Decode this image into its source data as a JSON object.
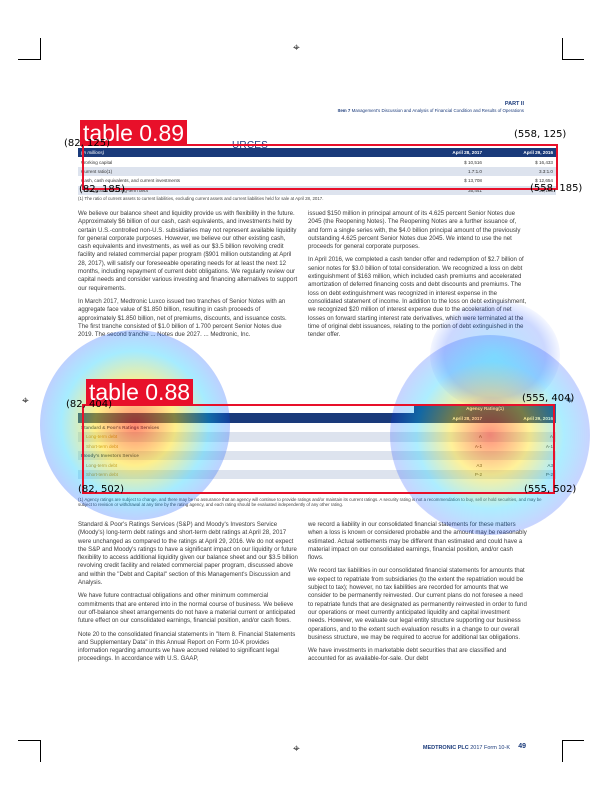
{
  "header": {
    "part": "PART II",
    "item_bold": "Item 7",
    "item_text": "Management's Discussion and Analysis of Financial Condition and Results of Operations"
  },
  "section_title": "URCES",
  "detections": [
    {
      "label": "table 0.89",
      "tl": "(82, 125)",
      "tr": "(558, 125)",
      "bl": "(82, 185)",
      "br": "(558, 185)"
    },
    {
      "label": "table 0.88",
      "tl": "(82, 404)",
      "tr": "(555, 404)",
      "bl": "(82, 502)",
      "br": "(555, 502)"
    }
  ],
  "table1": {
    "head": [
      "(in millions)",
      "April 28, 2017",
      "April 29, 2016"
    ],
    "rows": [
      [
        "Working capital",
        "$   10,516",
        "$   16,433"
      ],
      [
        "Current ratio(1)",
        "1.7:1.0",
        "3.3:1.0"
      ],
      [
        "Cash, cash equivalents, and current investments",
        "$   13,708",
        "$   12,654"
      ],
      [
        "... obligations and long-term debt",
        "35,441",
        "31,103"
      ]
    ],
    "footnote": "(1)   The ratio of current assets to current liabilities, excluding current assets and current liabilities held for sale at April 28, 2017."
  },
  "left_col_top": [
    "We believe our balance sheet and liquidity provide us with flexibility in the future. Approximately $6 billion of our cash, cash equivalents, and investments held by certain U.S.-controlled non-U.S. subsidiaries may not represent available liquidity for general corporate purposes. However, we believe our other existing cash, cash equivalents and investments, as well as our $3.5 billion revolving credit facility and related commercial paper program ($901 million outstanding at April 28, 2017), will satisfy our foreseeable operating needs for at least the next 12 months, including repayment of current debt obligations. We regularly review our capital needs and consider various investing and financing alternatives to support our requirements.",
    "In March 2017, Medtronic Luxco issued two tranches of Senior Notes with an aggregate face value of $1.850 billion, resulting in cash proceeds of approximately $1.850 billion, net of premiums, discounts, and issuance costs. The first tranche consisted of $1.0 billion of 1.700 percent Senior Notes due 2019. The second tranche ... Notes due 2027. ... Medtronic, Inc."
  ],
  "right_col_top": [
    "issued $150 million in principal amount of its 4.625 percent Senior Notes due 2045 (the Reopening Notes). The Reopening Notes are a further issuance of, and form a single series with, the $4.0 billion principal amount of the previously outstanding 4.625 percent Senior Notes due 2045. We intend to use the net proceeds for general corporate purposes.",
    "In April 2016, we completed a cash tender offer and redemption of $2.7 billion of senior notes for $3.0 billion of total consideration. We recognized a loss on debt extinguishment of $163 million, which included cash premiums and accelerated amortization of deferred financing costs and debt discounts and premiums. The loss on debt extinguishment was recognized in interest expense in the consolidated statement of income. In addition to the loss on debt extinguishment, we recognized $20 million of interest expense due to the acceleration of net losses on forward starting interest rate derivatives, which were terminated at the time of original debt issuances, relating to the portion of debt extinguished in the tender offer."
  ],
  "table2": {
    "group_head": "Agency Rating(1)",
    "head": [
      "",
      "April 28, 2017",
      "April 29, 2016"
    ],
    "rows": [
      {
        "kind": "sec",
        "cells": [
          "Standard & Poor's Ratings Services",
          "",
          ""
        ]
      },
      {
        "kind": "sub",
        "cells": [
          "Long-term debt",
          "A",
          "A"
        ]
      },
      {
        "kind": "sub",
        "cells": [
          "Short-term debt",
          "A-1",
          "A-1"
        ]
      },
      {
        "kind": "sec",
        "cells": [
          "Moody's Investors Service",
          "",
          ""
        ]
      },
      {
        "kind": "sub",
        "cells": [
          "Long-term debt",
          "A3",
          "A3"
        ]
      },
      {
        "kind": "sub",
        "cells": [
          "Short-term debt",
          "P-2",
          "P-2"
        ]
      }
    ],
    "footnote": "(1)   Agency ratings are subject to change, and there may be no assurance that an agency will continue to provide ratings and/or maintain its current ratings. A security rating is not a recommendation to buy, sell or hold securities, and may be subject to revision or withdrawal at any time by the rating agency, and each rating should be evaluated independently of any other rating."
  },
  "left_col_bottom": [
    "Standard & Poor's Ratings Services (S&P) and Moody's Investors Service (Moody's) long-term debt ratings and short-term debt ratings at April 28, 2017 were unchanged as compared to the ratings at April 29, 2016. We do not expect the S&P and Moody's ratings to have a significant impact on our liquidity or future flexibility to access additional liquidity given our balance sheet and our $3.5 billion revolving credit facility and related commercial paper program, discussed above and within the \"Debt and Capital\" section of this Management's Discussion and Analysis.",
    "We have future contractual obligations and other minimum commercial commitments that are entered into in the normal course of business. We believe our off-balance sheet arrangements do not have a material current or anticipated future effect on our consolidated earnings, financial position, and/or cash flows.",
    "Note 20 to the consolidated financial statements in \"Item 8. Financial Statements and Supplementary Data\" in this Annual Report on Form 10-K provides information regarding amounts we have accrued related to significant legal proceedings. In accordance with U.S. GAAP,"
  ],
  "right_col_bottom": [
    "we record a liability in our consolidated financial statements for these matters when a loss is known or considered probable and the amount may be reasonably estimated. Actual settlements may be different than estimated and could have a material impact on our consolidated earnings, financial position, and/or cash flows.",
    "We record tax liabilities in our consolidated financial statements for amounts that we expect to repatriate from subsidiaries (to the extent the repatriation would be subject to tax); however, no tax liabilities are recorded for amounts that we consider to be permanently reinvested. Our current plans do not foresee a need to repatriate funds that are designated as permanently reinvested in order to fund our operations or meet currently anticipated liquidity and capital investment needs. However, we evaluate our legal entity structure supporting our business operations, and to the extent such evaluation results in a change to our overall business structure, we may be required to accrue for additional tax obligations.",
    "We have investments in marketable debt securities that are classified and accounted for as available-for-sale. Our debt"
  ],
  "footer": {
    "company": "MEDTRONIC PLC",
    "form": "2017 Form 10-K",
    "page": "49"
  }
}
